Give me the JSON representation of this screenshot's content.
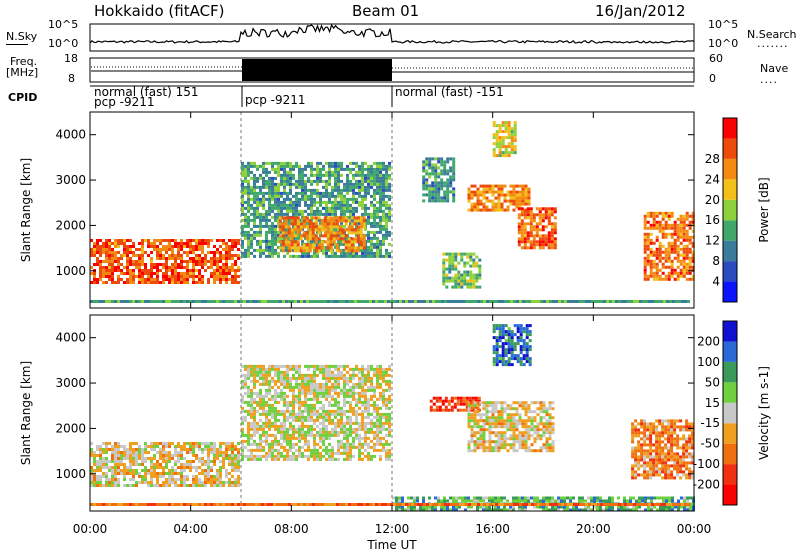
{
  "header": {
    "station": "Hokkaido (fitACF)",
    "beam": "Beam 01",
    "date": "16/Jan/2012"
  },
  "top_panels": {
    "nsky_label": "N.Sky",
    "nsearch_label": "N.Search",
    "nsky_ticks": [
      "10^5",
      "10^0"
    ],
    "nsearch_ticks": [
      "10^5",
      "10^0"
    ],
    "freq_label": "Freq.",
    "freq_unit": "[MHz]",
    "freq_ticks": [
      "18",
      "8"
    ],
    "nave_label": "Nave",
    "nave_ticks": [
      "60",
      "0"
    ],
    "cpid_label": "CPID",
    "cpid_segments": [
      {
        "line1": "normal (fast) 151",
        "line2": "pcp -9211"
      },
      {
        "line1": "pcp -9211",
        "line2": ""
      },
      {
        "line1": "normal (fast) -151",
        "line2": ""
      }
    ]
  },
  "chart_data": [
    {
      "type": "heatmap",
      "title": "Power",
      "xlabel": "",
      "ylabel": "Slant Range [km]",
      "y_ticks": [
        "1000",
        "2000",
        "3000",
        "4000"
      ],
      "ylim": [
        180,
        4500
      ],
      "colorbar_label": "Power [dB]",
      "colorbar_ticks": [
        "4",
        "8",
        "12",
        "16",
        "20",
        "24",
        "28"
      ],
      "colorbar_colors": [
        "#0a14ff",
        "#2a4cbf",
        "#3a7c9a",
        "#3fa86a",
        "#8fd13a",
        "#f3c01a",
        "#f58a12",
        "#ee4a0c",
        "#ff0000"
      ],
      "regions": [
        {
          "t0": 0.0,
          "t1": 6.0,
          "r0": 700,
          "r1": 1700,
          "level": 0.85
        },
        {
          "t0": 6.0,
          "t1": 12.0,
          "r0": 1300,
          "r1": 3400,
          "level": 0.35
        },
        {
          "t0": 7.5,
          "t1": 11.0,
          "r0": 1400,
          "r1": 2200,
          "level": 0.75
        },
        {
          "t0": 13.2,
          "t1": 14.5,
          "r0": 2500,
          "r1": 3500,
          "level": 0.3
        },
        {
          "t0": 14.0,
          "t1": 15.5,
          "r0": 600,
          "r1": 1400,
          "level": 0.45
        },
        {
          "t0": 15.0,
          "t1": 17.5,
          "r0": 2300,
          "r1": 2900,
          "level": 0.75
        },
        {
          "t0": 16.0,
          "t1": 17.0,
          "r0": 3500,
          "r1": 4300,
          "level": 0.6
        },
        {
          "t0": 17.0,
          "t1": 18.5,
          "r0": 1500,
          "r1": 2400,
          "level": 0.85
        },
        {
          "t0": 22.0,
          "t1": 24.0,
          "r0": 800,
          "r1": 2300,
          "level": 0.8
        }
      ]
    },
    {
      "type": "heatmap",
      "title": "Velocity",
      "xlabel": "Time UT",
      "ylabel": "Slant Range [km]",
      "x_ticks": [
        "00:00",
        "04:00",
        "08:00",
        "12:00",
        "16:00",
        "20:00",
        "00:00"
      ],
      "xlim": [
        0,
        24
      ],
      "y_ticks": [
        "1000",
        "2000",
        "3000",
        "4000"
      ],
      "ylim": [
        180,
        4500
      ],
      "colorbar_label": "Velocity [m s-1]",
      "colorbar_ticks": [
        "200",
        "100",
        "50",
        "15",
        "-15",
        "-50",
        "-100",
        "-200"
      ],
      "colorbar_colors": [
        "#1010d0",
        "#2a6ad8",
        "#3a9a5a",
        "#6fd040",
        "#c8c8c8",
        "#f0a020",
        "#f07010",
        "#f03010",
        "#ff0000"
      ],
      "regions": [
        {
          "t0": 0.0,
          "t1": 6.0,
          "r0": 700,
          "r1": 1700,
          "level": 0.45
        },
        {
          "t0": 6.0,
          "t1": 12.0,
          "r0": 1300,
          "r1": 3400,
          "level": 0.5
        },
        {
          "t0": 13.5,
          "t1": 15.5,
          "r0": 2400,
          "r1": 2700,
          "level": 0.1
        },
        {
          "t0": 15.0,
          "t1": 18.5,
          "r0": 1500,
          "r1": 2600,
          "level": 0.45
        },
        {
          "t0": 16.0,
          "t1": 17.5,
          "r0": 3400,
          "r1": 4300,
          "level": 0.85
        },
        {
          "t0": 21.5,
          "t1": 24.0,
          "r0": 900,
          "r1": 2200,
          "level": 0.3
        },
        {
          "t0": 12.0,
          "t1": 24.0,
          "r0": 180,
          "r1": 500,
          "level": 0.7
        }
      ]
    }
  ]
}
